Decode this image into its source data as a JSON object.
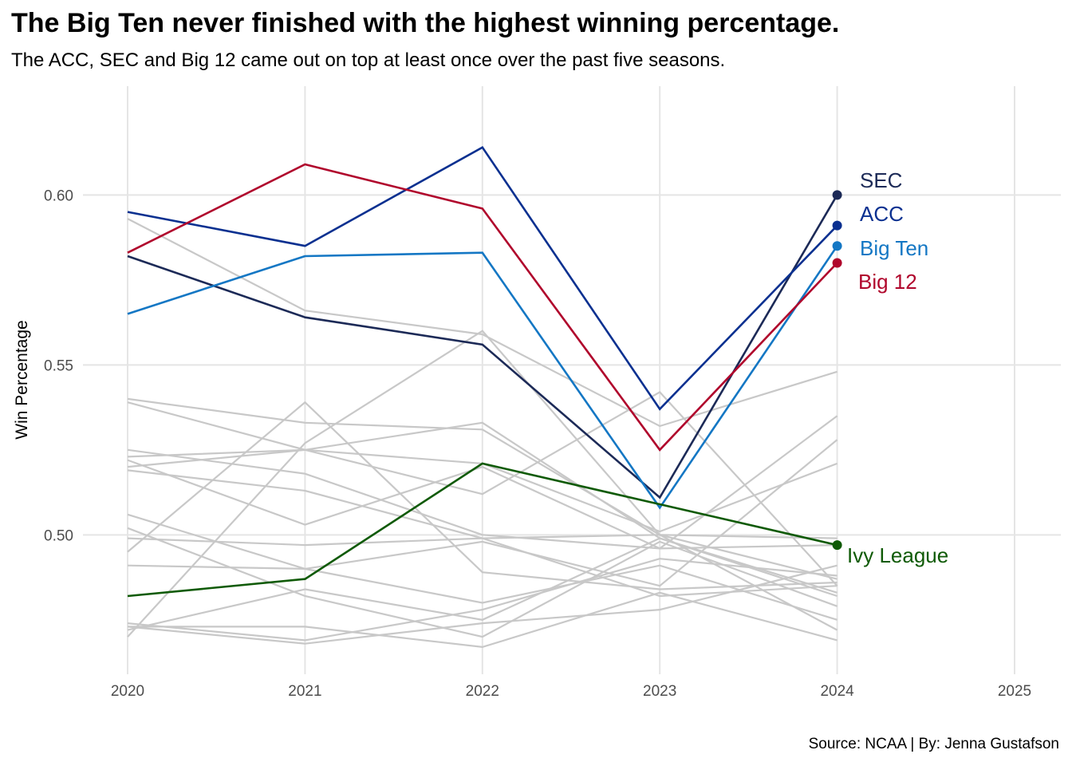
{
  "title": "The Big Ten never finished with the highest winning percentage.",
  "subtitle": "The ACC, SEC and Big 12 came out on top at least once over the past five seasons.",
  "caption": "Source: NCAA | By: Jenna Gustafson",
  "chart_data": {
    "type": "line",
    "x": [
      2020,
      2021,
      2022,
      2023,
      2024
    ],
    "xlim": [
      2020,
      2025
    ],
    "xticks": [
      "2020",
      "2021",
      "2022",
      "2023",
      "2024",
      "2025"
    ],
    "ylim": [
      0.459,
      0.632
    ],
    "yticks": [
      "0.50",
      "0.55",
      "0.60"
    ],
    "ytick_values": [
      0.5,
      0.55,
      0.6
    ],
    "ylabel": "Win Percentage",
    "xlabel": "",
    "grid": true,
    "highlighted": [
      {
        "name": "SEC",
        "color": "#1c2a57",
        "values": [
          0.582,
          0.564,
          0.556,
          0.511,
          0.6
        ]
      },
      {
        "name": "ACC",
        "color": "#0a3090",
        "values": [
          0.595,
          0.585,
          0.614,
          0.537,
          0.591
        ]
      },
      {
        "name": "Big Ten",
        "color": "#1477c4",
        "values": [
          0.565,
          0.582,
          0.583,
          0.508,
          0.585
        ]
      },
      {
        "name": "Big 12",
        "color": "#b0062c",
        "values": [
          0.583,
          0.609,
          0.596,
          0.525,
          0.58
        ]
      },
      {
        "name": "Ivy League",
        "color": "#0f5a06",
        "values": [
          0.482,
          0.487,
          0.521,
          0.509,
          0.497
        ]
      }
    ],
    "background_color": "#c8c8c8",
    "background": [
      [
        0.593,
        0.566,
        0.559,
        0.532,
        0.548
      ],
      [
        0.54,
        0.533,
        0.531,
        0.5,
        0.487
      ],
      [
        0.539,
        0.525,
        0.512,
        0.542,
        0.485
      ],
      [
        0.525,
        0.518,
        0.5,
        0.496,
        0.497
      ],
      [
        0.523,
        0.525,
        0.521,
        0.501,
        0.521
      ],
      [
        0.519,
        0.513,
        0.499,
        0.5,
        0.499
      ],
      [
        0.522,
        0.503,
        0.52,
        0.496,
        0.535
      ],
      [
        0.52,
        0.525,
        0.533,
        0.499,
        0.483
      ],
      [
        0.506,
        0.49,
        0.498,
        0.485,
        0.528
      ],
      [
        0.502,
        0.482,
        0.47,
        0.498,
        0.479
      ],
      [
        0.499,
        0.497,
        0.499,
        0.482,
        0.485
      ],
      [
        0.495,
        0.539,
        0.489,
        0.484,
        0.486
      ],
      [
        0.491,
        0.49,
        0.48,
        0.491,
        0.475
      ],
      [
        0.47,
        0.527,
        0.56,
        0.5,
        0.472
      ],
      [
        0.473,
        0.473,
        0.467,
        0.483,
        0.469
      ],
      [
        0.472,
        0.484,
        0.475,
        0.499,
        0.482
      ],
      [
        0.474,
        0.469,
        0.478,
        0.493,
        0.488
      ],
      [
        0.473,
        0.468,
        0.474,
        0.478,
        0.491
      ]
    ]
  }
}
